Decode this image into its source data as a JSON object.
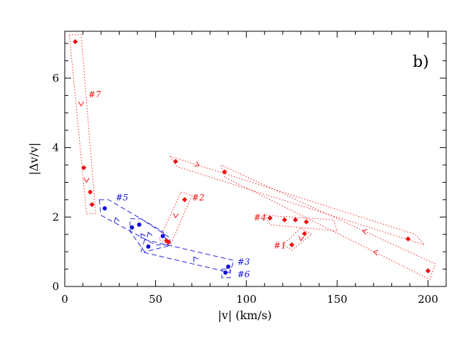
{
  "chart_data": {
    "type": "scatter",
    "panel_label": "b)",
    "xlabel": "|v|  (km/s)",
    "ylabel": "|Δv/v|",
    "xlim": [
      0,
      210
    ],
    "ylim": [
      0,
      7.35
    ],
    "x_ticks": [
      0,
      50,
      100,
      150,
      200
    ],
    "y_ticks": [
      0,
      2,
      4,
      6
    ],
    "x_tick_labels": [
      "0",
      "50",
      "100",
      "150",
      "200"
    ],
    "y_tick_labels": [
      "0",
      "2",
      "4",
      "6"
    ],
    "grid": false,
    "legend": "none",
    "colors": {
      "red": "#ee1111",
      "blue": "#1111dd"
    },
    "series": [
      {
        "label": "#7",
        "color": "#ee1111",
        "marker": "diamond",
        "points": [
          [
            5.8,
            7.05
          ],
          [
            10.5,
            3.42
          ],
          [
            14,
            2.72
          ],
          [
            15,
            2.36
          ]
        ]
      },
      {
        "label": "#2",
        "color": "#ee1111",
        "marker": "diamond",
        "points": [
          [
            66,
            2.5
          ],
          [
            56,
            1.32
          ],
          [
            57,
            1.28
          ]
        ]
      },
      {
        "label": "#4",
        "color": "#ee1111",
        "marker": "diamond",
        "points": [
          [
            113,
            1.97
          ],
          [
            121,
            1.92
          ],
          [
            127,
            1.92
          ],
          [
            133,
            1.86
          ],
          [
            189,
            1.37
          ]
        ]
      },
      {
        "label": "#1",
        "color": "#ee1111",
        "marker": "diamond",
        "points": [
          [
            132,
            1.52
          ],
          [
            125,
            1.2
          ]
        ]
      },
      {
        "label": "",
        "color": "#ee1111",
        "marker": "diamond",
        "points": [
          [
            61,
            3.6
          ],
          [
            88,
            3.3
          ],
          [
            200,
            0.45
          ]
        ]
      },
      {
        "label": "#5",
        "color": "#1111dd",
        "marker": "circle",
        "points": [
          [
            22,
            2.25
          ],
          [
            37,
            1.7
          ],
          [
            41,
            1.78
          ],
          [
            54,
            1.45
          ],
          [
            46,
            1.15
          ]
        ]
      },
      {
        "label": "#3",
        "color": "#1111dd",
        "marker": "circle",
        "points": [
          [
            90,
            0.57
          ]
        ]
      },
      {
        "label": "#6",
        "color": "#1111dd",
        "marker": "circle",
        "points": [
          [
            88.5,
            0.4
          ]
        ]
      }
    ],
    "track_boxes": [
      {
        "color": "#ee1111",
        "style": "dotted",
        "corners": [
          [
            2.5,
            7.25
          ],
          [
            9,
            7.25
          ],
          [
            17,
            2.1
          ],
          [
            12,
            2.1
          ]
        ]
      },
      {
        "color": "#ee1111",
        "style": "dotted",
        "corners": [
          [
            58,
            3.75
          ],
          [
            62,
            3.45
          ],
          [
            198,
            1.2
          ],
          [
            193,
            1.5
          ]
        ]
      },
      {
        "color": "#ee1111",
        "style": "dotted",
        "corners": [
          [
            88,
            3.15
          ],
          [
            86,
            3.5
          ],
          [
            204,
            0.65
          ],
          [
            201,
            0.2
          ]
        ]
      },
      {
        "color": "#ee1111",
        "style": "dotted",
        "corners": [
          [
            110,
            2.05
          ],
          [
            113,
            1.78
          ],
          [
            150,
            1.6
          ],
          [
            148,
            1.92
          ]
        ]
      },
      {
        "color": "#ee1111",
        "style": "dotted",
        "corners": [
          [
            130,
            1.68
          ],
          [
            136,
            1.5
          ],
          [
            125,
            1.05
          ],
          [
            120,
            1.2
          ]
        ]
      },
      {
        "color": "#ee1111",
        "style": "dotted",
        "corners": [
          [
            64,
            2.72
          ],
          [
            70,
            2.62
          ],
          [
            58,
            1.18
          ],
          [
            52,
            1.35
          ]
        ]
      },
      {
        "color": "#1111dd",
        "style": "dashed",
        "corners": [
          [
            19,
            2.5
          ],
          [
            24,
            2.5
          ],
          [
            54,
            1.58
          ],
          [
            57,
            1.2
          ],
          [
            50,
            1.2
          ],
          [
            20,
            2.05
          ]
        ]
      },
      {
        "color": "#1111dd",
        "style": "dashed",
        "corners": [
          [
            36,
            1.95
          ],
          [
            42,
            1.95
          ],
          [
            58,
            1.4
          ],
          [
            58,
            1.18
          ],
          [
            44,
            1.0
          ],
          [
            36,
            1.58
          ]
        ]
      },
      {
        "color": "#1111dd",
        "style": "dashed",
        "corners": [
          [
            44,
            1.35
          ],
          [
            42,
            1.0
          ],
          [
            91,
            0.4
          ],
          [
            93,
            0.75
          ]
        ]
      },
      {
        "color": "#1111dd",
        "style": "dashed",
        "corners": [
          [
            86.5,
            0.5
          ],
          [
            91,
            0.5
          ],
          [
            91,
            0.25
          ],
          [
            86.5,
            0.25
          ]
        ]
      }
    ],
    "arrows": [
      {
        "color": "#ee1111",
        "at": [
          9,
          5.2
        ],
        "direction": [
          1,
          -12
        ]
      },
      {
        "color": "#ee1111",
        "at": [
          12,
          3.0
        ],
        "direction": [
          1,
          -3
        ]
      },
      {
        "color": "#ee1111",
        "at": [
          74,
          3.48
        ],
        "direction": [
          8,
          -0.2
        ]
      },
      {
        "color": "#ee1111",
        "at": [
          61,
          1.98
        ],
        "direction": [
          -4,
          -3
        ]
      },
      {
        "color": "#ee1111",
        "at": [
          164,
          1.6
        ],
        "direction": [
          -8,
          0.1
        ]
      },
      {
        "color": "#ee1111",
        "at": [
          170,
          1.0
        ],
        "direction": [
          -8,
          0.1
        ]
      },
      {
        "color": "#ee1111",
        "at": [
          130,
          1.32
        ],
        "direction": [
          -3,
          -1.5
        ]
      },
      {
        "color": "#1111dd",
        "at": [
          28,
          1.98
        ],
        "direction": [
          -8,
          1.5
        ]
      },
      {
        "color": "#1111dd",
        "at": [
          42,
          1.52
        ],
        "direction": [
          -6,
          0.5
        ]
      },
      {
        "color": "#1111dd",
        "at": [
          71,
          0.85
        ],
        "direction": [
          -8,
          0.6
        ]
      },
      {
        "color": "#1111dd",
        "at": [
          46,
          1.56
        ],
        "direction": [
          -4,
          0.6
        ]
      }
    ],
    "labels": [
      {
        "text": "#7",
        "color": "#ee1111",
        "at": [
          13,
          5.45
        ]
      },
      {
        "text": "#2",
        "color": "#ee1111",
        "at": [
          70,
          2.48
        ]
      },
      {
        "text": "#4",
        "color": "#ee1111",
        "at": [
          104,
          1.9
        ]
      },
      {
        "text": "#1",
        "color": "#ee1111",
        "at": [
          115,
          1.1
        ]
      },
      {
        "text": "#5",
        "color": "#1111dd",
        "at": [
          28,
          2.48
        ]
      },
      {
        "text": "#3",
        "color": "#1111dd",
        "at": [
          95,
          0.62
        ]
      },
      {
        "text": "#6",
        "color": "#1111dd",
        "at": [
          95,
          0.27
        ]
      }
    ]
  }
}
